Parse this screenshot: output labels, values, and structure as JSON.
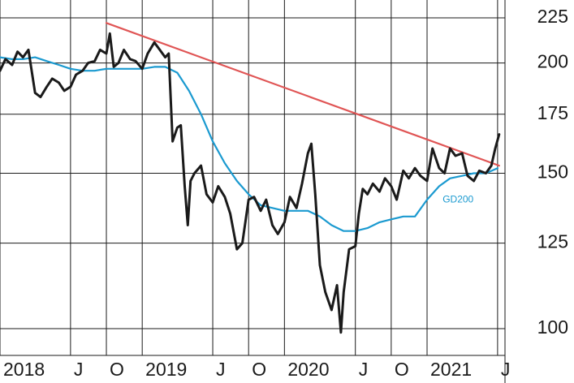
{
  "chart_data": {
    "type": "line",
    "title": "",
    "xlabel": "",
    "ylabel": "",
    "y_scale": "log",
    "ylim": [
      95,
      235
    ],
    "xlim": [
      "2018-01-01",
      "2021-07-20"
    ],
    "y_ticks": [
      100,
      125,
      150,
      175,
      200,
      225
    ],
    "x_ticks": [
      {
        "date": "2018-01-01",
        "label": "2018"
      },
      {
        "date": "2018-07-01",
        "label": "J"
      },
      {
        "date": "2018-10-01",
        "label": "O"
      },
      {
        "date": "2019-01-01",
        "label": "2019"
      },
      {
        "date": "2019-07-01",
        "label": "J"
      },
      {
        "date": "2019-10-01",
        "label": "O"
      },
      {
        "date": "2020-01-01",
        "label": "2020"
      },
      {
        "date": "2020-07-01",
        "label": "J"
      },
      {
        "date": "2020-10-01",
        "label": "O"
      },
      {
        "date": "2021-01-01",
        "label": "2021"
      },
      {
        "date": "2021-07-01",
        "label": "J"
      }
    ],
    "grid": true,
    "colors": {
      "price": "#1a1a1a",
      "ma": "#1b9ad0",
      "trend": "#e05555"
    },
    "series": [
      {
        "name": "",
        "key": "price",
        "points": [
          [
            "2018-01-01",
            196
          ],
          [
            "2018-01-15",
            202
          ],
          [
            "2018-02-01",
            199
          ],
          [
            "2018-02-15",
            206
          ],
          [
            "2018-03-01",
            203
          ],
          [
            "2018-03-15",
            207
          ],
          [
            "2018-04-01",
            185
          ],
          [
            "2018-04-15",
            183
          ],
          [
            "2018-05-01",
            188
          ],
          [
            "2018-05-15",
            192
          ],
          [
            "2018-06-01",
            190
          ],
          [
            "2018-06-15",
            186
          ],
          [
            "2018-07-01",
            188
          ],
          [
            "2018-07-15",
            194
          ],
          [
            "2018-08-01",
            196
          ],
          [
            "2018-08-15",
            200
          ],
          [
            "2018-09-01",
            201
          ],
          [
            "2018-09-15",
            207
          ],
          [
            "2018-10-01",
            205
          ],
          [
            "2018-10-10",
            216
          ],
          [
            "2018-10-20",
            198
          ],
          [
            "2018-11-01",
            200
          ],
          [
            "2018-11-15",
            207
          ],
          [
            "2018-12-01",
            202
          ],
          [
            "2018-12-15",
            201
          ],
          [
            "2019-01-01",
            197
          ],
          [
            "2019-01-15",
            205
          ],
          [
            "2019-02-01",
            211
          ],
          [
            "2019-02-15",
            207
          ],
          [
            "2019-03-01",
            203
          ],
          [
            "2019-03-10",
            205
          ],
          [
            "2019-03-20",
            163
          ],
          [
            "2019-04-01",
            169
          ],
          [
            "2019-04-10",
            170
          ],
          [
            "2019-04-20",
            145
          ],
          [
            "2019-04-28",
            131
          ],
          [
            "2019-05-05",
            147
          ],
          [
            "2019-05-15",
            150
          ],
          [
            "2019-06-01",
            153
          ],
          [
            "2019-06-15",
            142
          ],
          [
            "2019-07-01",
            139
          ],
          [
            "2019-07-15",
            145
          ],
          [
            "2019-08-01",
            141
          ],
          [
            "2019-08-15",
            135
          ],
          [
            "2019-09-01",
            123
          ],
          [
            "2019-09-15",
            125
          ],
          [
            "2019-10-01",
            140
          ],
          [
            "2019-10-15",
            141
          ],
          [
            "2019-11-01",
            136
          ],
          [
            "2019-11-15",
            140
          ],
          [
            "2019-12-01",
            131
          ],
          [
            "2019-12-15",
            128
          ],
          [
            "2020-01-01",
            132
          ],
          [
            "2020-01-15",
            141
          ],
          [
            "2020-02-01",
            137
          ],
          [
            "2020-02-15",
            146
          ],
          [
            "2020-03-01",
            158
          ],
          [
            "2020-03-10",
            162
          ],
          [
            "2020-03-20",
            142
          ],
          [
            "2020-04-01",
            118
          ],
          [
            "2020-04-15",
            110
          ],
          [
            "2020-05-01",
            105
          ],
          [
            "2020-05-15",
            112
          ],
          [
            "2020-05-25",
            99
          ],
          [
            "2020-06-01",
            110
          ],
          [
            "2020-06-15",
            123
          ],
          [
            "2020-07-01",
            124
          ],
          [
            "2020-07-10",
            135
          ],
          [
            "2020-07-20",
            144
          ],
          [
            "2020-08-01",
            142
          ],
          [
            "2020-08-15",
            146
          ],
          [
            "2020-09-01",
            143
          ],
          [
            "2020-09-15",
            148
          ],
          [
            "2020-10-01",
            145
          ],
          [
            "2020-10-15",
            140
          ],
          [
            "2020-11-01",
            151
          ],
          [
            "2020-11-15",
            148
          ],
          [
            "2020-12-01",
            152
          ],
          [
            "2020-12-15",
            149
          ],
          [
            "2021-01-01",
            147
          ],
          [
            "2021-01-15",
            160
          ],
          [
            "2021-02-01",
            152
          ],
          [
            "2021-02-15",
            150
          ],
          [
            "2021-03-01",
            160
          ],
          [
            "2021-03-15",
            157
          ],
          [
            "2021-04-01",
            158
          ],
          [
            "2021-04-15",
            149
          ],
          [
            "2021-05-01",
            147
          ],
          [
            "2021-05-15",
            151
          ],
          [
            "2021-06-01",
            150
          ],
          [
            "2021-06-15",
            153
          ],
          [
            "2021-06-25",
            160
          ],
          [
            "2021-07-05",
            166
          ]
        ]
      },
      {
        "name": "GD200",
        "key": "ma",
        "points": [
          [
            "2018-01-01",
            203
          ],
          [
            "2018-02-01",
            202
          ],
          [
            "2018-03-01",
            202
          ],
          [
            "2018-04-01",
            203
          ],
          [
            "2018-05-01",
            201
          ],
          [
            "2018-06-01",
            199
          ],
          [
            "2018-07-01",
            197
          ],
          [
            "2018-08-01",
            196
          ],
          [
            "2018-09-01",
            196
          ],
          [
            "2018-10-01",
            197
          ],
          [
            "2018-11-01",
            197
          ],
          [
            "2018-12-01",
            197
          ],
          [
            "2019-01-01",
            197
          ],
          [
            "2019-02-01",
            198
          ],
          [
            "2019-03-01",
            198
          ],
          [
            "2019-04-01",
            195
          ],
          [
            "2019-05-01",
            186
          ],
          [
            "2019-06-01",
            175
          ],
          [
            "2019-07-01",
            163
          ],
          [
            "2019-08-01",
            154
          ],
          [
            "2019-09-01",
            147
          ],
          [
            "2019-10-01",
            142
          ],
          [
            "2019-11-01",
            138
          ],
          [
            "2019-12-01",
            137
          ],
          [
            "2020-01-01",
            136
          ],
          [
            "2020-02-01",
            136
          ],
          [
            "2020-03-01",
            136
          ],
          [
            "2020-04-01",
            134
          ],
          [
            "2020-05-01",
            131
          ],
          [
            "2020-06-01",
            129
          ],
          [
            "2020-07-01",
            129
          ],
          [
            "2020-08-01",
            130
          ],
          [
            "2020-09-01",
            132
          ],
          [
            "2020-10-01",
            133
          ],
          [
            "2020-11-01",
            134
          ],
          [
            "2020-12-01",
            134
          ],
          [
            "2021-01-01",
            140
          ],
          [
            "2021-02-01",
            145
          ],
          [
            "2021-03-01",
            148
          ],
          [
            "2021-04-01",
            149
          ],
          [
            "2021-05-01",
            150
          ],
          [
            "2021-06-01",
            150
          ],
          [
            "2021-07-01",
            152
          ]
        ]
      },
      {
        "name": "",
        "key": "trend",
        "points": [
          [
            "2018-10-01",
            222
          ],
          [
            "2021-07-05",
            153
          ]
        ]
      }
    ],
    "annotations": [
      {
        "text": "GD200",
        "date": "2021-02-10",
        "value": 139
      }
    ]
  }
}
